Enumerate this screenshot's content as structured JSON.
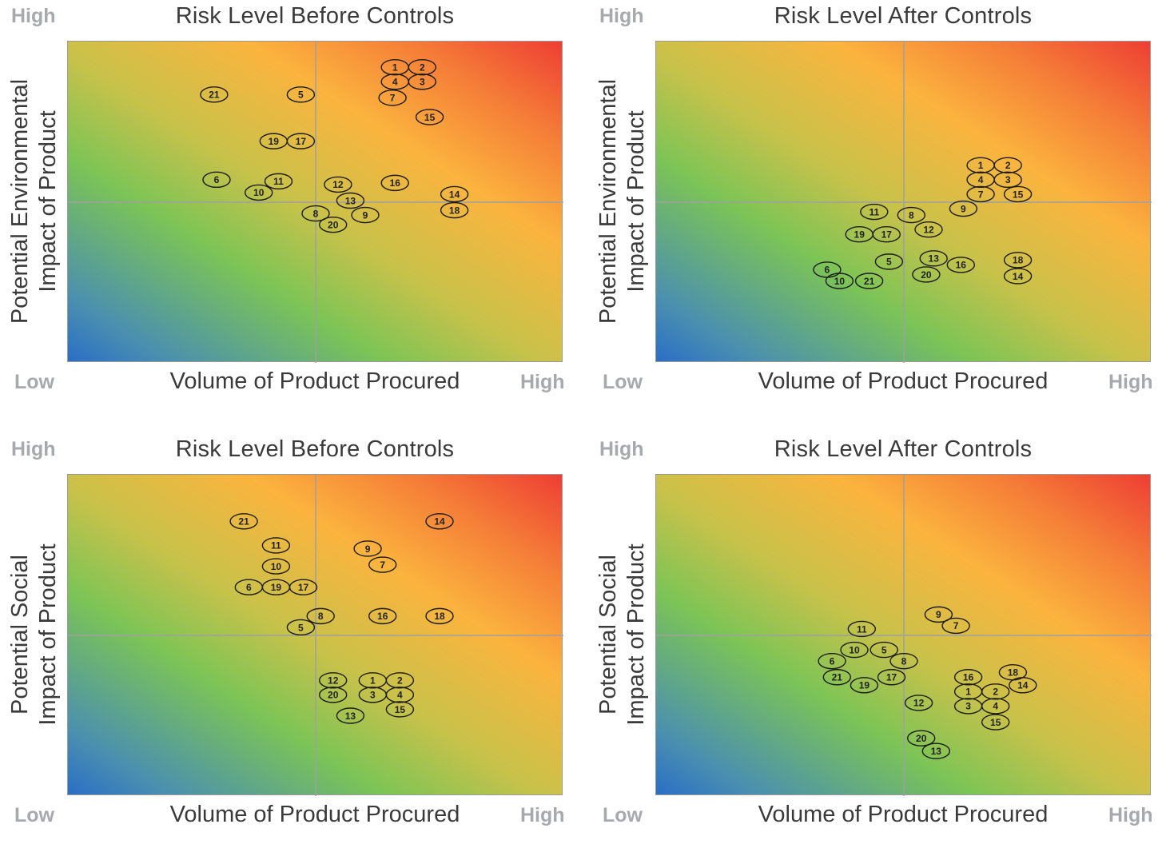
{
  "chart_data": [
    {
      "type": "scatter",
      "title": "Risk Level Before Controls",
      "xlabel": "Volume of Product Procured",
      "ylabel": [
        "Potential Environmental",
        "Impact of Product"
      ],
      "x_low": "Low",
      "x_high": "High",
      "y_high": "High",
      "xlim": [
        0,
        100
      ],
      "ylim": [
        0,
        100
      ],
      "points": [
        {
          "label": "1",
          "x": 66,
          "y": 92
        },
        {
          "label": "2",
          "x": 71.5,
          "y": 92
        },
        {
          "label": "4",
          "x": 66,
          "y": 87.5
        },
        {
          "label": "3",
          "x": 71.5,
          "y": 87.5
        },
        {
          "label": "21",
          "x": 29.5,
          "y": 83.5
        },
        {
          "label": "5",
          "x": 47,
          "y": 83.5
        },
        {
          "label": "7",
          "x": 65.5,
          "y": 82.5
        },
        {
          "label": "15",
          "x": 73,
          "y": 76.5
        },
        {
          "label": "19",
          "x": 41.5,
          "y": 69
        },
        {
          "label": "17",
          "x": 47,
          "y": 69
        },
        {
          "label": "6",
          "x": 30,
          "y": 57
        },
        {
          "label": "11",
          "x": 42.5,
          "y": 56.5
        },
        {
          "label": "12",
          "x": 54.5,
          "y": 55.5
        },
        {
          "label": "16",
          "x": 66,
          "y": 56
        },
        {
          "label": "10",
          "x": 38.5,
          "y": 53
        },
        {
          "label": "14",
          "x": 78,
          "y": 52.5
        },
        {
          "label": "13",
          "x": 57,
          "y": 50.5
        },
        {
          "label": "18",
          "x": 78,
          "y": 47.5
        },
        {
          "label": "8",
          "x": 50,
          "y": 46.5
        },
        {
          "label": "9",
          "x": 60,
          "y": 46
        },
        {
          "label": "20",
          "x": 53.5,
          "y": 43
        }
      ],
      "colors": {
        "quadrant_lines": "#a0a0a0",
        "low_risk": "#2a6ec6",
        "mid_risk": "#7cc456",
        "med_high_risk": "#fbb43e",
        "high_risk": "#ee3e34"
      }
    },
    {
      "type": "scatter",
      "title": "Risk Level After Controls",
      "xlabel": "Volume of Product Procured",
      "ylabel": [
        "Potential Environmental",
        "Impact of Product"
      ],
      "x_low": "Low",
      "x_high": "High",
      "y_high": "High",
      "xlim": [
        0,
        100
      ],
      "ylim": [
        0,
        100
      ],
      "points": [
        {
          "label": "1",
          "x": 65.5,
          "y": 61.5
        },
        {
          "label": "2",
          "x": 71,
          "y": 61.5
        },
        {
          "label": "4",
          "x": 65.5,
          "y": 57
        },
        {
          "label": "3",
          "x": 71,
          "y": 57
        },
        {
          "label": "7",
          "x": 65.5,
          "y": 52.5
        },
        {
          "label": "15",
          "x": 73,
          "y": 52.5
        },
        {
          "label": "9",
          "x": 62,
          "y": 48
        },
        {
          "label": "11",
          "x": 44,
          "y": 47
        },
        {
          "label": "8",
          "x": 51.5,
          "y": 46
        },
        {
          "label": "12",
          "x": 55,
          "y": 41.5
        },
        {
          "label": "19",
          "x": 41,
          "y": 40
        },
        {
          "label": "17",
          "x": 46.5,
          "y": 40
        },
        {
          "label": "5",
          "x": 47,
          "y": 31.5
        },
        {
          "label": "13",
          "x": 56,
          "y": 32.5
        },
        {
          "label": "16",
          "x": 61.5,
          "y": 30.5
        },
        {
          "label": "18",
          "x": 73,
          "y": 32
        },
        {
          "label": "6",
          "x": 34.5,
          "y": 29
        },
        {
          "label": "20",
          "x": 54.5,
          "y": 27.5
        },
        {
          "label": "14",
          "x": 73,
          "y": 27
        },
        {
          "label": "10",
          "x": 37,
          "y": 25.5
        },
        {
          "label": "21",
          "x": 43,
          "y": 25.5
        }
      ],
      "colors": {
        "quadrant_lines": "#a0a0a0",
        "low_risk": "#2a6ec6",
        "mid_risk": "#7cc456",
        "med_high_risk": "#fbb43e",
        "high_risk": "#ee3e34"
      }
    },
    {
      "type": "scatter",
      "title": "Risk Level Before Controls",
      "xlabel": "Volume of Product Procured",
      "ylabel": [
        "Potential Social",
        "Impact of Product"
      ],
      "x_low": "Low",
      "x_high": "High",
      "y_high": "High",
      "xlim": [
        0,
        100
      ],
      "ylim": [
        0,
        100
      ],
      "points": [
        {
          "label": "21",
          "x": 35.5,
          "y": 85.5
        },
        {
          "label": "14",
          "x": 75,
          "y": 85.5
        },
        {
          "label": "11",
          "x": 42,
          "y": 78
        },
        {
          "label": "9",
          "x": 60.5,
          "y": 77
        },
        {
          "label": "10",
          "x": 42,
          "y": 71.5
        },
        {
          "label": "7",
          "x": 63.5,
          "y": 72
        },
        {
          "label": "6",
          "x": 36.5,
          "y": 65
        },
        {
          "label": "19",
          "x": 42,
          "y": 65
        },
        {
          "label": "17",
          "x": 47.5,
          "y": 65
        },
        {
          "label": "8",
          "x": 51,
          "y": 56
        },
        {
          "label": "16",
          "x": 63.5,
          "y": 56
        },
        {
          "label": "18",
          "x": 75,
          "y": 56
        },
        {
          "label": "5",
          "x": 47,
          "y": 52.5
        },
        {
          "label": "12",
          "x": 53.5,
          "y": 36
        },
        {
          "label": "1",
          "x": 61.5,
          "y": 36
        },
        {
          "label": "2",
          "x": 67,
          "y": 36
        },
        {
          "label": "20",
          "x": 53.5,
          "y": 31.5
        },
        {
          "label": "3",
          "x": 61.5,
          "y": 31.5
        },
        {
          "label": "4",
          "x": 67,
          "y": 31.5
        },
        {
          "label": "15",
          "x": 67,
          "y": 27
        },
        {
          "label": "13",
          "x": 57,
          "y": 25
        }
      ],
      "colors": {
        "quadrant_lines": "#a0a0a0",
        "low_risk": "#2a6ec6",
        "mid_risk": "#7cc456",
        "med_high_risk": "#fbb43e",
        "high_risk": "#ee3e34"
      }
    },
    {
      "type": "scatter",
      "title": "Risk Level After Controls",
      "xlabel": "Volume of Product Procured",
      "ylabel": [
        "Potential Social",
        "Impact of Product"
      ],
      "x_low": "Low",
      "x_high": "High",
      "y_high": "High",
      "xlim": [
        0,
        100
      ],
      "ylim": [
        0,
        100
      ],
      "points": [
        {
          "label": "9",
          "x": 57,
          "y": 56.5
        },
        {
          "label": "7",
          "x": 60.5,
          "y": 53
        },
        {
          "label": "11",
          "x": 41.5,
          "y": 52
        },
        {
          "label": "10",
          "x": 40,
          "y": 45.5
        },
        {
          "label": "5",
          "x": 46,
          "y": 45.5
        },
        {
          "label": "6",
          "x": 35.5,
          "y": 42
        },
        {
          "label": "8",
          "x": 50,
          "y": 42
        },
        {
          "label": "18",
          "x": 72,
          "y": 38.5
        },
        {
          "label": "16",
          "x": 63,
          "y": 37
        },
        {
          "label": "21",
          "x": 36.5,
          "y": 37
        },
        {
          "label": "17",
          "x": 47.5,
          "y": 37
        },
        {
          "label": "19",
          "x": 42,
          "y": 34.5
        },
        {
          "label": "14",
          "x": 74,
          "y": 34.5
        },
        {
          "label": "1",
          "x": 63,
          "y": 32.5
        },
        {
          "label": "2",
          "x": 68.5,
          "y": 32.5
        },
        {
          "label": "12",
          "x": 53,
          "y": 29
        },
        {
          "label": "3",
          "x": 63,
          "y": 28
        },
        {
          "label": "4",
          "x": 68.5,
          "y": 28
        },
        {
          "label": "15",
          "x": 68.5,
          "y": 23
        },
        {
          "label": "20",
          "x": 53.5,
          "y": 18
        },
        {
          "label": "13",
          "x": 56.5,
          "y": 14
        }
      ],
      "colors": {
        "quadrant_lines": "#a0a0a0",
        "low_risk": "#2a6ec6",
        "mid_risk": "#7cc456",
        "med_high_risk": "#fbb43e",
        "high_risk": "#ee3e34"
      }
    }
  ]
}
